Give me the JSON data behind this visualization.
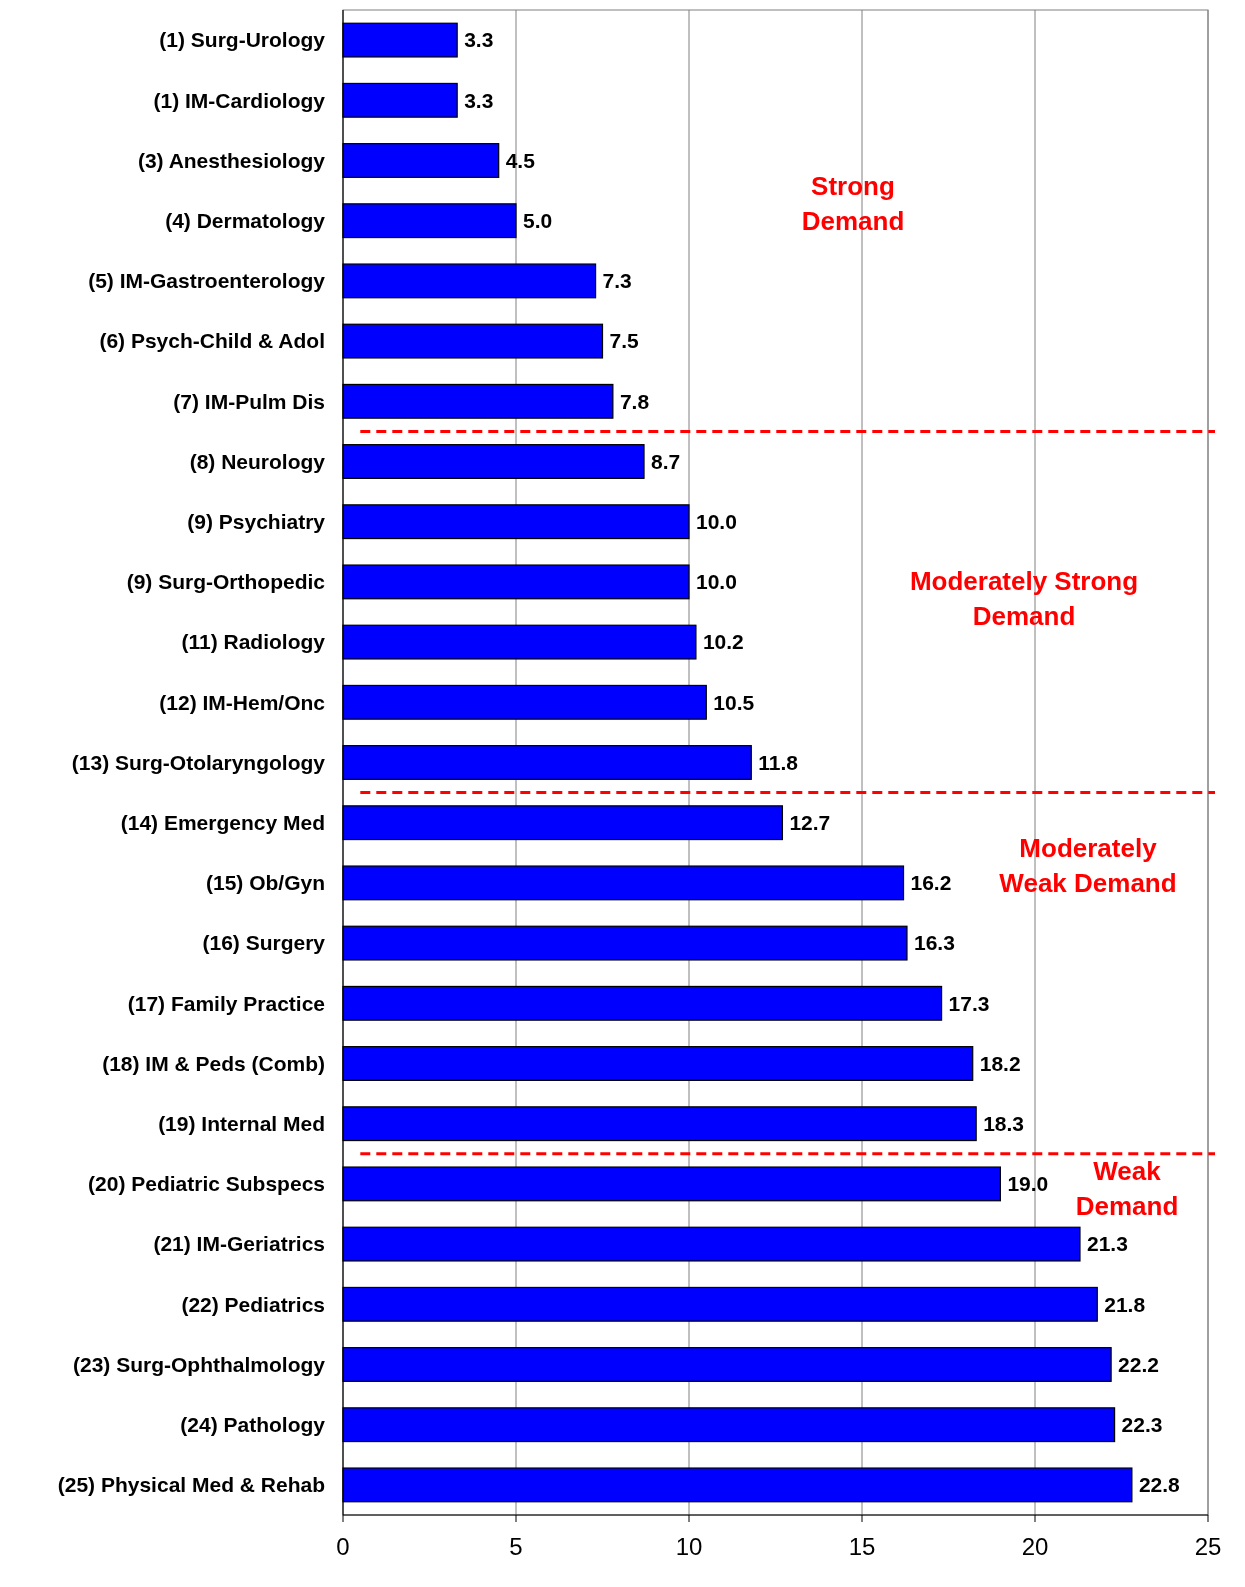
{
  "chart_data": {
    "type": "bar",
    "orientation": "horizontal",
    "categories": [
      "(1) Surg-Urology",
      "(1) IM-Cardiology",
      "(3) Anesthesiology",
      "(4) Dermatology",
      "(5) IM-Gastroenterology",
      "(6) Psych-Child & Adol",
      "(7) IM-Pulm Dis",
      "(8) Neurology",
      "(9) Psychiatry",
      "(9) Surg-Orthopedic",
      "(11) Radiology",
      "(12) IM-Hem/Onc",
      "(13) Surg-Otolaryngology",
      "(14) Emergency Med",
      "(15) Ob/Gyn",
      "(16) Surgery",
      "(17) Family Practice",
      "(18) IM & Peds (Comb)",
      "(19) Internal Med",
      "(20) Pediatric Subspecs",
      "(21) IM-Geriatrics",
      "(22) Pediatrics",
      "(23) Surg-Ophthalmology",
      "(24) Pathology",
      "(25) Physical Med & Rehab"
    ],
    "values": [
      3.3,
      3.3,
      4.5,
      5.0,
      7.3,
      7.5,
      7.8,
      8.7,
      10.0,
      10.0,
      10.2,
      10.5,
      11.8,
      12.7,
      16.2,
      16.3,
      17.3,
      18.2,
      18.3,
      19.0,
      21.3,
      21.8,
      22.2,
      22.3,
      22.8
    ],
    "value_labels": [
      "3.3",
      "3.3",
      "4.5",
      "5.0",
      "7.3",
      "7.5",
      "7.8",
      "8.7",
      "10.0",
      "10.0",
      "10.2",
      "10.5",
      "11.8",
      "12.7",
      "16.2",
      "16.3",
      "17.3",
      "18.2",
      "18.3",
      "19.0",
      "21.3",
      "21.8",
      "22.2",
      "22.3",
      "22.8"
    ],
    "color": "#0000ff",
    "xlim": [
      0,
      25
    ],
    "xticks": [
      0,
      5,
      10,
      15,
      20,
      25
    ],
    "grid": "x",
    "annotations": [
      "Strong\nDemand",
      "Moderately Strong\nDemand",
      "Moderately\nWeak Demand",
      "Weak\nDemand"
    ]
  }
}
